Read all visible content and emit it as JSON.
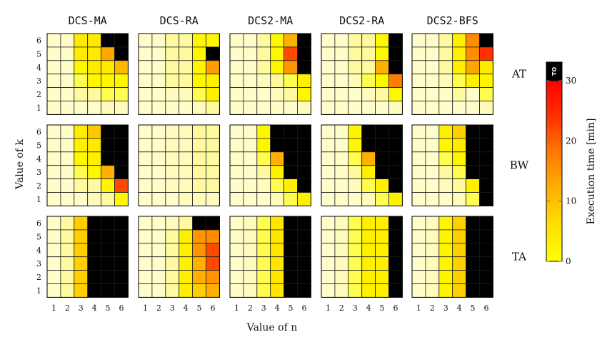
{
  "chart_data": {
    "type": "heatmap",
    "xlabel": "Value of n",
    "ylabel": "Value of k",
    "x_ticks": [
      1,
      2,
      3,
      4,
      5,
      6
    ],
    "y_ticks": [
      1,
      2,
      3,
      4,
      5,
      6
    ],
    "columns": [
      "DCS-MA",
      "DCS-RA",
      "DCS2-MA",
      "DCS2-RA",
      "DCS2-BFS"
    ],
    "rows": [
      "AT",
      "BW",
      "TA"
    ],
    "colorbar": {
      "label": "Execution time [min]",
      "range": [
        0,
        30
      ],
      "ticks": [
        0,
        10,
        20,
        30
      ],
      "timeout_label": "TO",
      "timeout_value": 40,
      "colors": [
        "#ffff00",
        "#ffe000",
        "#ffb000",
        "#ff7a00",
        "#ff3000",
        "#ff0000"
      ]
    },
    "note": "values in minutes, matrix[row = k 6..1][col = n 1..6]; 40 = timeout (TO)",
    "panels": [
      [
        [
          [
            0.2,
            0.2,
            4,
            4,
            40,
            40
          ],
          [
            0.2,
            0.2,
            4,
            4,
            13,
            40
          ],
          [
            0.2,
            0.2,
            1.5,
            4,
            4,
            11
          ],
          [
            0.2,
            0.2,
            1,
            1.5,
            1.5,
            1.5
          ],
          [
            0.2,
            0.2,
            0.5,
            0.5,
            1,
            1
          ],
          [
            0.2,
            0.2,
            0.2,
            0.2,
            0.3,
            0.3
          ]
        ],
        [
          [
            0.2,
            0.2,
            0.5,
            0.5,
            1.5,
            1.5
          ],
          [
            0.2,
            0.2,
            0.5,
            0.5,
            2,
            40
          ],
          [
            0.2,
            0.2,
            0.5,
            0.5,
            2,
            14
          ],
          [
            0.2,
            0.2,
            0.5,
            0.5,
            1.5,
            3
          ],
          [
            0.2,
            0.2,
            0.3,
            0.3,
            1,
            3
          ],
          [
            0.2,
            0.2,
            0.2,
            0.2,
            0.3,
            0.5
          ]
        ],
        [
          [
            0.2,
            0.2,
            0.5,
            1.5,
            12,
            40
          ],
          [
            0.2,
            0.2,
            0.5,
            1.5,
            22,
            40
          ],
          [
            0.2,
            0.2,
            0.5,
            1.5,
            15,
            40
          ],
          [
            0.2,
            0.2,
            0.3,
            0.5,
            1,
            3
          ],
          [
            0.2,
            0.2,
            0.2,
            0.3,
            0.5,
            1.5
          ],
          [
            0.2,
            0.2,
            0.2,
            0.2,
            0.2,
            0.3
          ]
        ],
        [
          [
            0.2,
            0.2,
            0.5,
            0.5,
            1.5,
            40
          ],
          [
            0.2,
            0.2,
            0.5,
            0.5,
            1.5,
            40
          ],
          [
            0.2,
            0.2,
            0.5,
            0.5,
            12,
            40
          ],
          [
            0.2,
            0.2,
            0.3,
            1,
            1.5,
            18
          ],
          [
            0.2,
            0.2,
            0.2,
            0.3,
            0.5,
            1.5
          ],
          [
            0.2,
            0.2,
            0.2,
            0.2,
            0.2,
            0.3
          ]
        ],
        [
          [
            0.2,
            0.2,
            0.5,
            3,
            16,
            40
          ],
          [
            0.2,
            0.2,
            0.5,
            3,
            16,
            24
          ],
          [
            0.2,
            0.2,
            0.5,
            3,
            13,
            4
          ],
          [
            0.2,
            0.2,
            0.3,
            1,
            3,
            2
          ],
          [
            0.2,
            0.2,
            0.2,
            0.5,
            0.2,
            1
          ],
          [
            0.2,
            0.2,
            0.2,
            0.2,
            0.2,
            0.3
          ]
        ]
      ],
      [
        [
          [
            0.2,
            0.2,
            4,
            9,
            40,
            40
          ],
          [
            0.2,
            0.2,
            3,
            4,
            40,
            40
          ],
          [
            0.2,
            0.2,
            1.5,
            3,
            40,
            40
          ],
          [
            0.2,
            0.2,
            1,
            1.5,
            12,
            40
          ],
          [
            0.2,
            0.2,
            0.5,
            0.5,
            2,
            22
          ],
          [
            0.2,
            0.2,
            0.2,
            0.3,
            0.5,
            1.5
          ]
        ],
        [
          [
            0.2,
            0.2,
            0.3,
            0.3,
            0.5,
            0.5
          ],
          [
            0.2,
            0.2,
            0.3,
            0.3,
            0.5,
            0.5
          ],
          [
            0.2,
            0.2,
            0.3,
            0.3,
            0.5,
            0.5
          ],
          [
            0.2,
            0.2,
            0.3,
            0.3,
            0.5,
            0.5
          ],
          [
            0.2,
            0.2,
            0.3,
            0.3,
            0.5,
            0.5
          ],
          [
            0.2,
            0.2,
            0.2,
            0.3,
            0.3,
            0.3
          ]
        ],
        [
          [
            0.2,
            0.2,
            2,
            40,
            40,
            40
          ],
          [
            0.2,
            0.2,
            1.5,
            40,
            40,
            40
          ],
          [
            0.2,
            0.2,
            1,
            12,
            40,
            40
          ],
          [
            0.2,
            0.2,
            0.5,
            3,
            40,
            40
          ],
          [
            0.2,
            0.2,
            0.3,
            1,
            3,
            40
          ],
          [
            0.2,
            0.2,
            0.2,
            0.3,
            1,
            3
          ]
        ],
        [
          [
            0.2,
            0.2,
            2,
            40,
            40,
            40
          ],
          [
            0.2,
            0.2,
            1.5,
            40,
            40,
            40
          ],
          [
            0.2,
            0.2,
            1,
            12,
            40,
            40
          ],
          [
            0.2,
            0.2,
            0.5,
            3,
            40,
            40
          ],
          [
            0.2,
            0.2,
            0.3,
            1,
            3,
            40
          ],
          [
            0.2,
            0.2,
            0.2,
            0.3,
            1,
            3
          ]
        ],
        [
          [
            0.2,
            0.2,
            3,
            8,
            40,
            40
          ],
          [
            0.2,
            0.2,
            1.5,
            4,
            40,
            40
          ],
          [
            0.2,
            0.2,
            1,
            2,
            40,
            40
          ],
          [
            0.2,
            0.2,
            0.5,
            1,
            40,
            40
          ],
          [
            0.2,
            0.2,
            0.3,
            0.5,
            3,
            40
          ],
          [
            0.2,
            0.2,
            0.2,
            0.3,
            1,
            40
          ]
        ]
      ],
      [
        [
          [
            0.2,
            0.5,
            8,
            40,
            40,
            40
          ],
          [
            0.2,
            0.5,
            8,
            40,
            40,
            40
          ],
          [
            0.2,
            0.5,
            8,
            40,
            40,
            40
          ],
          [
            0.2,
            0.5,
            8,
            40,
            40,
            40
          ],
          [
            0.2,
            0.5,
            8,
            40,
            40,
            40
          ],
          [
            0.2,
            0.5,
            8,
            40,
            40,
            40
          ]
        ],
        [
          [
            0.2,
            0.2,
            0.3,
            0.5,
            40,
            40
          ],
          [
            0.2,
            0.2,
            0.5,
            3,
            15,
            16
          ],
          [
            0.2,
            0.2,
            0.5,
            3,
            15,
            22
          ],
          [
            0.2,
            0.2,
            0.5,
            3,
            12,
            22
          ],
          [
            0.2,
            0.2,
            0.5,
            3,
            12,
            15
          ],
          [
            0.2,
            0.2,
            0.5,
            3,
            8,
            12
          ]
        ],
        [
          [
            0.2,
            0.3,
            1,
            5,
            40,
            40
          ],
          [
            0.2,
            0.3,
            1,
            5,
            40,
            40
          ],
          [
            0.2,
            0.3,
            1,
            5,
            40,
            40
          ],
          [
            0.2,
            0.3,
            1,
            5,
            40,
            40
          ],
          [
            0.2,
            0.3,
            1,
            5,
            40,
            40
          ],
          [
            0.2,
            0.3,
            1,
            5,
            40,
            40
          ]
        ],
        [
          [
            0.2,
            0.3,
            1,
            3,
            3,
            40
          ],
          [
            0.2,
            0.3,
            1,
            3,
            3,
            40
          ],
          [
            0.2,
            0.3,
            1,
            3,
            3,
            40
          ],
          [
            0.2,
            0.3,
            1,
            3,
            3,
            40
          ],
          [
            0.2,
            0.3,
            1,
            3,
            3,
            40
          ],
          [
            0.2,
            0.3,
            1,
            3,
            3,
            40
          ]
        ],
        [
          [
            0.2,
            0.3,
            2,
            8,
            40,
            40
          ],
          [
            0.2,
            0.3,
            2,
            8,
            40,
            40
          ],
          [
            0.2,
            0.3,
            2,
            8,
            40,
            40
          ],
          [
            0.2,
            0.3,
            2,
            8,
            40,
            40
          ],
          [
            0.2,
            0.3,
            2,
            8,
            40,
            40
          ],
          [
            0.2,
            0.3,
            2,
            8,
            40,
            40
          ]
        ]
      ]
    ]
  }
}
